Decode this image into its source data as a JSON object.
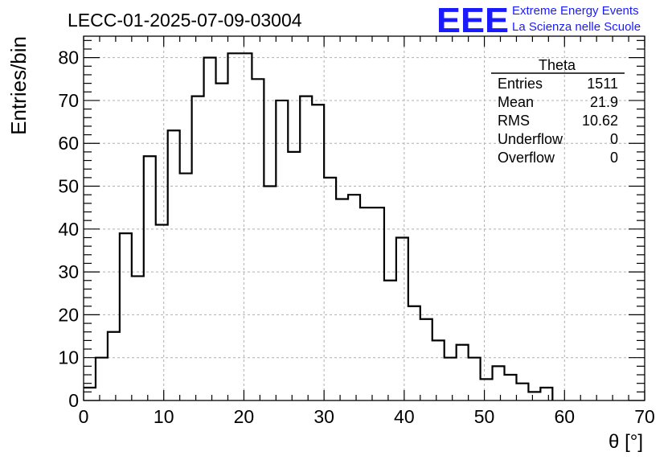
{
  "chart_data": {
    "type": "bar",
    "style": "step-histogram",
    "title": "LECC-01-2025-07-09-03004",
    "xlabel": "θ [°]",
    "ylabel": "Entries/bin",
    "xlim": [
      0,
      70
    ],
    "ylim": [
      0,
      85
    ],
    "grid": true,
    "bin_width": 1.5,
    "bin_start": 0,
    "x_ticks": [
      0,
      10,
      20,
      30,
      40,
      50,
      60,
      70
    ],
    "y_ticks": [
      0,
      10,
      20,
      30,
      40,
      50,
      60,
      70,
      80
    ],
    "values": [
      3,
      10,
      16,
      39,
      29,
      57,
      41,
      63,
      53,
      71,
      80,
      74,
      81,
      81,
      75,
      50,
      70,
      58,
      71,
      69,
      52,
      47,
      48,
      45,
      45,
      28,
      38,
      22,
      19,
      14,
      10,
      13,
      10,
      5,
      8,
      6,
      4,
      2,
      3
    ],
    "line_color": "#000000",
    "grid_color": "#b0b0b0"
  },
  "stats_box": {
    "title": "Theta",
    "rows": [
      {
        "label": "Entries",
        "value": "1511"
      },
      {
        "label": "Mean",
        "value": "21.9"
      },
      {
        "label": "RMS",
        "value": "10.62"
      },
      {
        "label": "Underflow",
        "value": "0"
      },
      {
        "label": "Overflow",
        "value": "0"
      }
    ]
  },
  "logo": {
    "mark": "EEE",
    "line1": "Extreme Energy Events",
    "line2": "La Scienza nelle Scuole",
    "color": "#1a1aff"
  }
}
